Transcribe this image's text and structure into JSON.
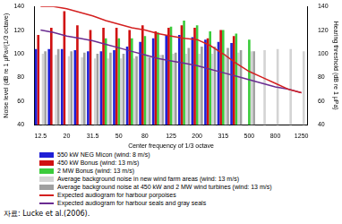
{
  "chart_data": {
    "type": "bar",
    "xlabel": "Center frequency of 1/3 octave",
    "ylabel": "Noise level (dB re 1 μPa²/(1/3 octave)",
    "y2label": "Hearing threshold (dB re 1 μPa)",
    "source": "자료: Lucke et al.(2006).",
    "categories": [
      "12.5",
      null,
      "20",
      null,
      "31.5",
      null,
      "50",
      null,
      "80",
      null,
      "125",
      null,
      "200",
      null,
      "315",
      null,
      "500",
      null,
      "800",
      null,
      "1250"
    ],
    "ylim": [
      40,
      140
    ],
    "yticks": [
      40,
      60,
      80,
      100,
      120,
      140
    ],
    "y2lim": [
      40,
      140
    ],
    "y2ticks": [
      40,
      60,
      80,
      100,
      120,
      140
    ],
    "grid": false,
    "legend": "bottom",
    "series": [
      {
        "name": "550 kW NEG Micon (wind: 8 m/s)",
        "type": "bar",
        "color": "#1f1fd6",
        "values": [
          104,
          104,
          104,
          103,
          102,
          102,
          103,
          106,
          110,
          113,
          116,
          116,
          114,
          112,
          110,
          109,
          null,
          null,
          null,
          null,
          null
        ]
      },
      {
        "name": "450 kW Bonus (wind: 13 m/s)",
        "type": "bar",
        "color": "#d01010",
        "values": [
          116,
          122,
          136,
          124,
          120,
          122,
          122,
          120,
          124,
          119,
          122,
          124,
          122,
          113,
          120,
          115,
          null,
          null,
          null,
          null,
          null
        ]
      },
      {
        "name": "2 MW Bonus (wind: 13 m/s)",
        "type": "bar",
        "color": "#3ccc3c",
        "values": [
          null,
          null,
          null,
          null,
          null,
          113,
          113,
          113,
          115,
          118,
          123,
          128,
          124,
          119,
          120,
          117,
          112,
          null,
          null,
          null,
          null
        ]
      },
      {
        "name": "Average background noise in new wind farm areas (wind: 13 m/s)",
        "type": "bar",
        "color": "#d4d4d4",
        "values": [
          100,
          99,
          98,
          97,
          96,
          96,
          96,
          96,
          98,
          99,
          100,
          100,
          100,
          100,
          100,
          101,
          102,
          103,
          104,
          104,
          102
        ]
      },
      {
        "name": "Average background noise at 450 kW and 2 MW wind turbines (wind: 13 m/s)",
        "type": "bar",
        "color": "#a0a0a0",
        "values": [
          102,
          104,
          102,
          101,
          100,
          101,
          100,
          98,
          97,
          99,
          101,
          105,
          106,
          106,
          105,
          103,
          102,
          null,
          null,
          null,
          null
        ]
      },
      {
        "name": "Expected audiogram for harbour porpoises",
        "type": "line",
        "axis": "y2",
        "color": "#d42020",
        "line_style": "solid",
        "values": [
          140,
          140,
          138,
          135,
          132,
          128,
          125,
          122,
          120,
          117,
          115,
          113,
          112,
          107,
          100,
          92,
          85,
          80,
          75,
          70,
          67
        ]
      },
      {
        "name": "Expected audiogram for harbour seals and gray seals",
        "type": "line",
        "axis": "y2",
        "color": "#6a2c91",
        "line_style": "solid",
        "values": [
          120,
          118,
          115,
          113,
          111,
          108,
          105,
          102,
          99,
          96,
          94,
          92,
          90,
          87,
          84,
          81,
          78,
          75,
          72,
          70,
          67
        ]
      }
    ]
  }
}
